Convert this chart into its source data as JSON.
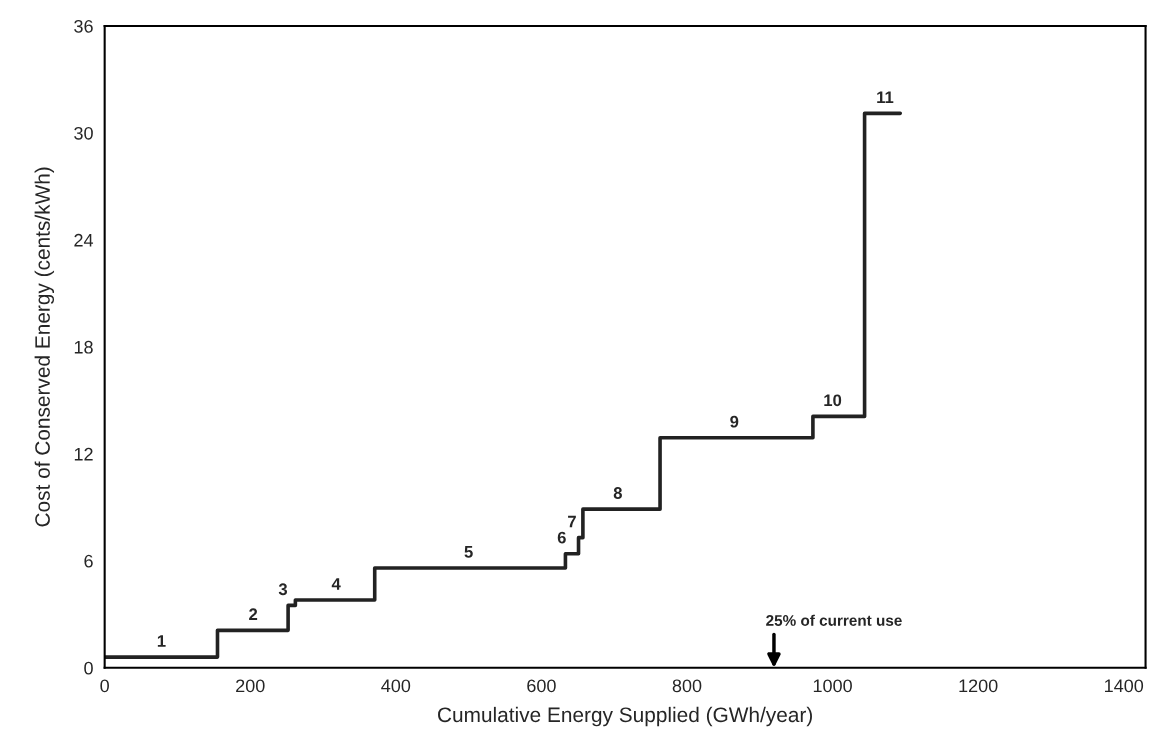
{
  "chart_data": {
    "type": "step",
    "xlabel": "Cumulative Energy Supplied (GWh/year)",
    "ylabel": "Cost of Conserved Energy (cents/kWh)",
    "x": [
      0,
      155,
      252,
      262,
      371,
      633,
      651,
      657,
      763,
      973,
      1044,
      1093
    ],
    "series": [
      {
        "color": "#222222",
        "values": [
          0.6,
          2.1,
          3.5,
          3.8,
          5.6,
          6.4,
          7.3,
          8.9,
          12.9,
          14.1,
          31.1,
          31.1
        ]
      }
    ],
    "xlim": [
      0,
      1430
    ],
    "xticks": [
      0,
      200,
      400,
      600,
      800,
      1000,
      1200,
      1400
    ],
    "ylim": [
      0,
      36
    ],
    "yticks": [
      0,
      6,
      12,
      18,
      24,
      30,
      36
    ],
    "annotations": [
      {
        "text": "1",
        "x": 78,
        "y": 0.6
      },
      {
        "text": "2",
        "x": 204,
        "y": 2.1
      },
      {
        "text": "3",
        "x": 245,
        "y": 3.5
      },
      {
        "text": "4",
        "x": 318,
        "y": 3.8
      },
      {
        "text": "5",
        "x": 500,
        "y": 5.6
      },
      {
        "text": "6",
        "x": 628,
        "y": 6.4
      },
      {
        "text": "7",
        "x": 642,
        "y": 7.3
      },
      {
        "text": "8",
        "x": 705,
        "y": 8.9
      },
      {
        "text": "9",
        "x": 865,
        "y": 12.9
      },
      {
        "text": "10",
        "x": 1000,
        "y": 14.1
      },
      {
        "text": "11",
        "x": 1072,
        "y": 31.1
      },
      "25% of current use"
    ],
    "grid": false,
    "line_style": "solid",
    "marker": "none"
  }
}
